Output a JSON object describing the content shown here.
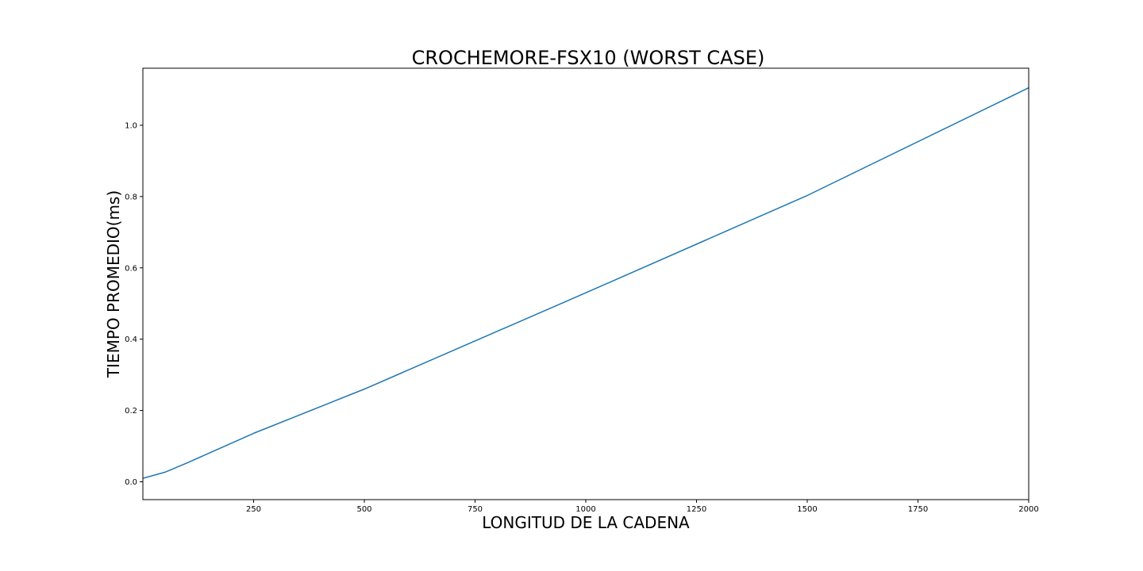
{
  "chart_data": {
    "type": "line",
    "title": "CROCHEMORE-FSX10 (WORST CASE)",
    "xlabel": "LONGITUD DE LA CADENA",
    "ylabel": "TIEMPO PROMEDIO(ms)",
    "xlim": [
      0,
      2000
    ],
    "ylim": [
      -0.05,
      1.16
    ],
    "xticks": [
      250,
      500,
      750,
      1000,
      1250,
      1500,
      1750,
      2000
    ],
    "xtick_labels": [
      "250",
      "500",
      "750",
      "1000",
      "1250",
      "1500",
      "1750",
      "2000"
    ],
    "yticks": [
      0.0,
      0.2,
      0.4,
      0.6,
      0.8,
      1.0
    ],
    "ytick_labels": [
      "0.0",
      "0.2",
      "0.4",
      "0.6",
      "0.8",
      "1.0"
    ],
    "grid": false,
    "series": [
      {
        "color": "#1f77b4",
        "x": [
          1,
          50,
          100,
          250,
          500,
          1000,
          1500,
          2000
        ],
        "y": [
          0.01,
          0.027,
          0.053,
          0.136,
          0.26,
          0.53,
          0.803,
          1.105
        ]
      }
    ]
  }
}
